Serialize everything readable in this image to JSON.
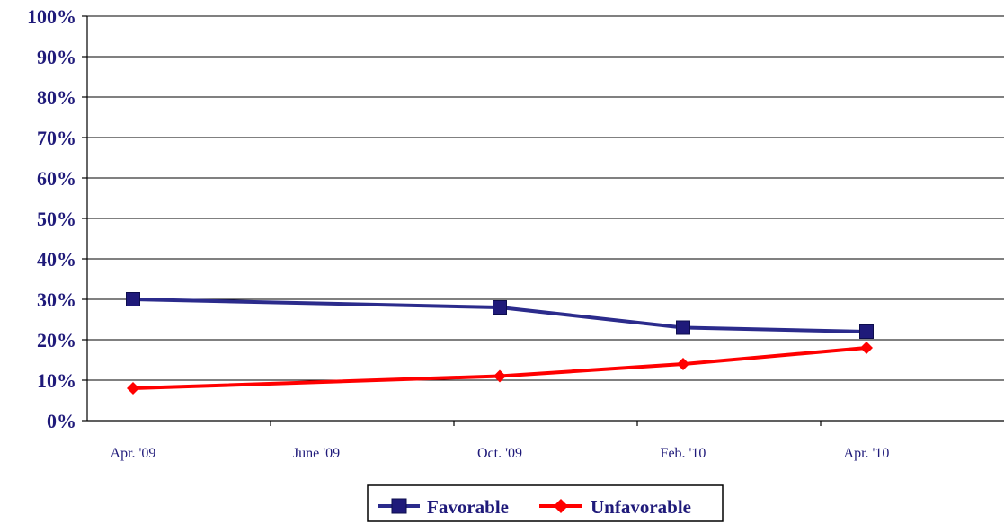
{
  "chart_data": {
    "type": "line",
    "title": "",
    "xlabel": "",
    "ylabel": "",
    "categories": [
      "Apr. '09",
      "June '09",
      "Oct. '09",
      "Feb. '10",
      "Apr. '10"
    ],
    "x_positions": [
      0.5,
      2.5,
      4.5,
      6.5,
      8.5
    ],
    "series": [
      {
        "name": "Favorable",
        "color": "#2b2b8c",
        "marker": "square",
        "x": [
          0.5,
          4.5,
          6.5,
          8.5
        ],
        "values": [
          30,
          28,
          23,
          22
        ]
      },
      {
        "name": "Unfavorable",
        "color": "#ff0000",
        "marker": "diamond",
        "x": [
          0.5,
          4.5,
          6.5,
          8.5
        ],
        "values": [
          8,
          11,
          14,
          18
        ]
      }
    ],
    "ylim": [
      0,
      100
    ],
    "yticks": [
      "0%",
      "10%",
      "20%",
      "30%",
      "40%",
      "50%",
      "60%",
      "70%",
      "80%",
      "90%",
      "100%"
    ],
    "grid": true,
    "legend_placement": "bottom-center"
  }
}
